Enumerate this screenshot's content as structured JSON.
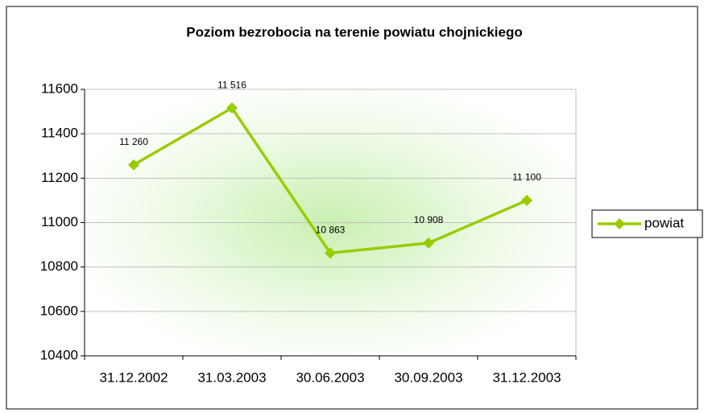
{
  "chart_data": {
    "type": "line",
    "title": "Poziom bezrobocia na terenie powiatu chojnickiego",
    "categories": [
      "31.12.2002",
      "31.03.2003",
      "30.06.2003",
      "30.09.2003",
      "31.12.2003"
    ],
    "series": [
      {
        "name": "powiat",
        "color": "#99cc00",
        "values": [
          11260,
          11516,
          10863,
          10908,
          11100
        ],
        "value_labels": [
          "11 260",
          "11 516",
          "10 863",
          "10 908",
          "11 100"
        ]
      }
    ],
    "ylim": [
      10400,
      11600
    ],
    "yticks": [
      10400,
      10600,
      10800,
      11000,
      11200,
      11400,
      11600
    ],
    "grid": true,
    "legend": "right"
  }
}
